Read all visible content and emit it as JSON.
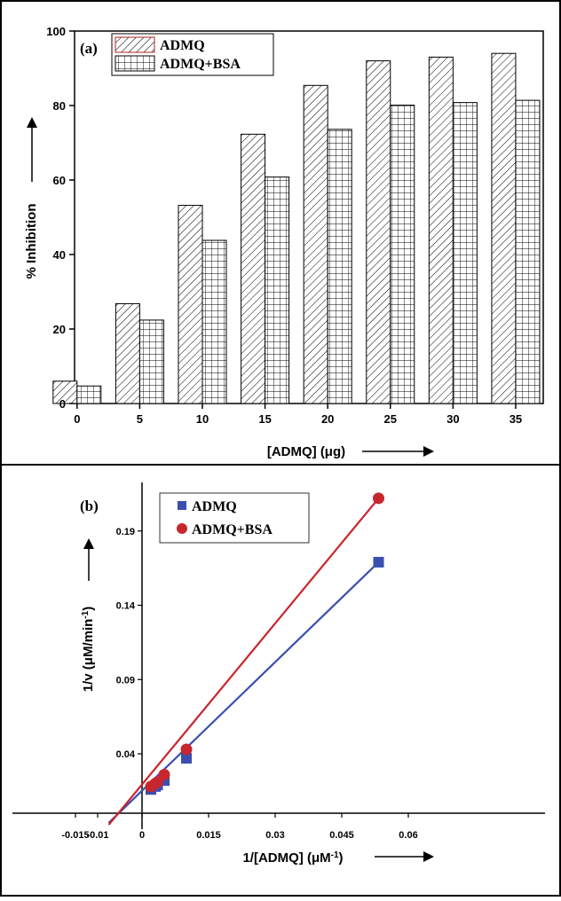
{
  "chart_data": [
    {
      "type": "bar",
      "panel": "(a)",
      "categories": [
        "0",
        "5",
        "10",
        "15",
        "20",
        "25",
        "30",
        "35"
      ],
      "series": [
        {
          "name": "ADMQ",
          "values": [
            6,
            26.8,
            53.2,
            72.3,
            85.4,
            92,
            93,
            94
          ]
        },
        {
          "name": "ADMQ+BSA",
          "values": [
            4.7,
            22.4,
            43.8,
            60.8,
            73.6,
            80.1,
            80.8,
            81.4
          ]
        }
      ],
      "xlabel": "[ADMQ] (μg)",
      "ylabel": "% Inhibition",
      "ylim": [
        0,
        100
      ],
      "yticks": [
        "0",
        "20",
        "40",
        "60",
        "80",
        "100"
      ],
      "legend_position": "top-left",
      "grid": false
    },
    {
      "type": "scatter",
      "panel": "(b)",
      "series": [
        {
          "name": "ADMQ",
          "color": "#3b4fb0",
          "marker": "square",
          "x": [
            0.002,
            0.003,
            0.0035,
            0.005,
            0.01,
            0.0533
          ],
          "y": [
            0.016,
            0.018,
            0.019,
            0.022,
            0.037,
            0.169
          ],
          "fit_line": {
            "from": [
              -0.0075,
              -0.0065
            ],
            "to": [
              0.0533,
              0.169
            ]
          }
        },
        {
          "name": "ADMQ+BSA",
          "color": "#c8262e",
          "marker": "circle",
          "x": [
            0.002,
            0.003,
            0.0035,
            0.005,
            0.01,
            0.0533
          ],
          "y": [
            0.018,
            0.02,
            0.021,
            0.026,
            0.043,
            0.212
          ],
          "fit_line": {
            "from": [
              -0.0075,
              -0.0078
            ],
            "to": [
              0.0533,
              0.212
            ]
          }
        }
      ],
      "xlabel": "1/[ADMQ] (μM⁻¹)",
      "ylabel": "1/v (μM/min⁻¹)",
      "xlim": [
        -0.015,
        0.06
      ],
      "ylim": [
        -0.0075,
        0.225
      ],
      "xticks": [
        "-0.015",
        "-0.01",
        "0",
        "0.015",
        "0.03",
        "0.045",
        "0.06"
      ],
      "yticks": [
        "0.04",
        "0.09",
        "0.14",
        "0.19"
      ],
      "legend_position": "top-left",
      "grid": false
    }
  ]
}
